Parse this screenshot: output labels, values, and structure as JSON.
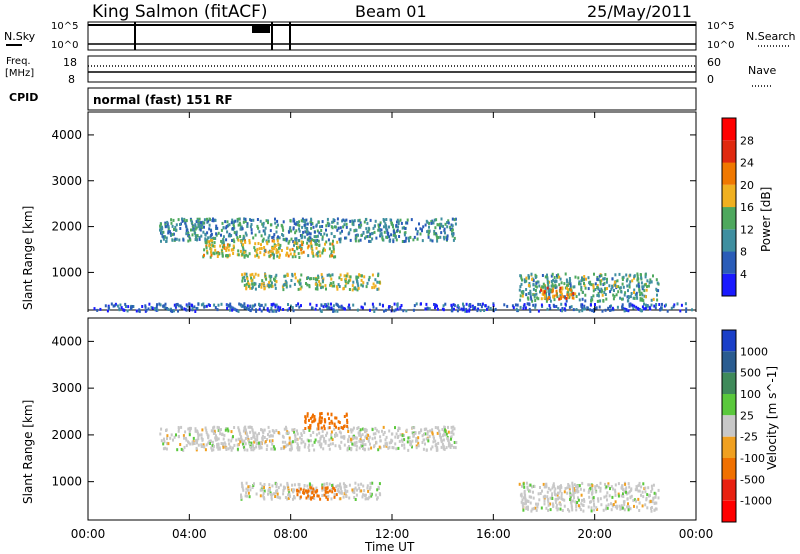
{
  "header": {
    "station": "King Salmon (fitACF)",
    "beam": "Beam 01",
    "date": "25/May/2011"
  },
  "status_panel": {
    "left_top_label": "N.Sky",
    "left_mid_label_1": "Freq.",
    "left_mid_label_2": "[MHz]",
    "left_bottom_label": "CPID",
    "right_top_label": "N.Search",
    "right_mid_label": "Nave",
    "nsky_ticks": [
      "10^5",
      "10^0"
    ],
    "nsearch_ticks": [
      "10^5",
      "10^0"
    ],
    "freq_ticks": [
      "18",
      "8"
    ],
    "nave_ticks": [
      "60",
      "0"
    ],
    "cpid_text": "normal (fast) 151 RF"
  },
  "axes": {
    "ylabel": "Slant Range [km]",
    "xlabel": "Time UT",
    "yticks": [
      "1000",
      "2000",
      "3000",
      "4000"
    ],
    "xticks": [
      "00:00",
      "04:00",
      "08:00",
      "12:00",
      "16:00",
      "20:00",
      "00:00"
    ]
  },
  "power_scale": {
    "label": "Power [dB]",
    "ticks": [
      "4",
      "8",
      "12",
      "16",
      "20",
      "24",
      "28"
    ],
    "colors": [
      "#1a1aff",
      "#2a5cb8",
      "#3f8fa0",
      "#4ea85e",
      "#f0b020",
      "#f07800",
      "#e02a10",
      "#ff0000"
    ]
  },
  "velocity_scale": {
    "label": "Velocity [m s^-1]",
    "ticks": [
      "1000",
      "500",
      "100",
      "25",
      "-25",
      "-100",
      "-500",
      "-1000"
    ],
    "colors": [
      "#1a3fc8",
      "#2a5c90",
      "#3f8a5a",
      "#5ac83c",
      "#c8c8c8",
      "#f0a020",
      "#f07000",
      "#e82010",
      "#ff0000"
    ]
  },
  "chart_data": [
    {
      "type": "heatmap",
      "title": "Power",
      "xlabel": "Time UT",
      "ylabel": "Slant Range [km]",
      "x_range_hours": [
        0,
        24
      ],
      "y_range_km": [
        180,
        4500
      ],
      "colorbar_label": "Power [dB]",
      "colorbar_range": [
        0,
        30
      ],
      "regions": [
        {
          "t": [
            2.8,
            14.5
          ],
          "r": [
            1700,
            2200
          ],
          "level": 10
        },
        {
          "t": [
            4.5,
            9.8
          ],
          "r": [
            1350,
            1750
          ],
          "level": 16
        },
        {
          "t": [
            6.0,
            11.5
          ],
          "r": [
            650,
            1000
          ],
          "level": 14
        },
        {
          "t": [
            17.0,
            22.5
          ],
          "r": [
            400,
            1000
          ],
          "level": 12
        },
        {
          "t": [
            17.8,
            19.2
          ],
          "r": [
            450,
            700
          ],
          "level": 22
        },
        {
          "t": [
            0.2,
            23.9
          ],
          "r": [
            180,
            350
          ],
          "level": 6
        }
      ]
    },
    {
      "type": "heatmap",
      "title": "Velocity",
      "xlabel": "Time UT",
      "ylabel": "Slant Range [km]",
      "x_range_hours": [
        0,
        24
      ],
      "y_range_km": [
        180,
        4500
      ],
      "colorbar_label": "Velocity [m s^-1]",
      "colorbar_range": [
        -1000,
        1000
      ],
      "regions": [
        {
          "t": [
            2.8,
            14.5
          ],
          "r": [
            1700,
            2200
          ],
          "v": 0
        },
        {
          "t": [
            8.5,
            10.2
          ],
          "r": [
            2150,
            2500
          ],
          "v": -150
        },
        {
          "t": [
            6.0,
            11.5
          ],
          "r": [
            650,
            1000
          ],
          "v": 0
        },
        {
          "t": [
            8.2,
            9.8
          ],
          "r": [
            650,
            900
          ],
          "v": -150
        },
        {
          "t": [
            17.0,
            22.5
          ],
          "r": [
            400,
            1000
          ],
          "v": 0
        }
      ]
    }
  ]
}
